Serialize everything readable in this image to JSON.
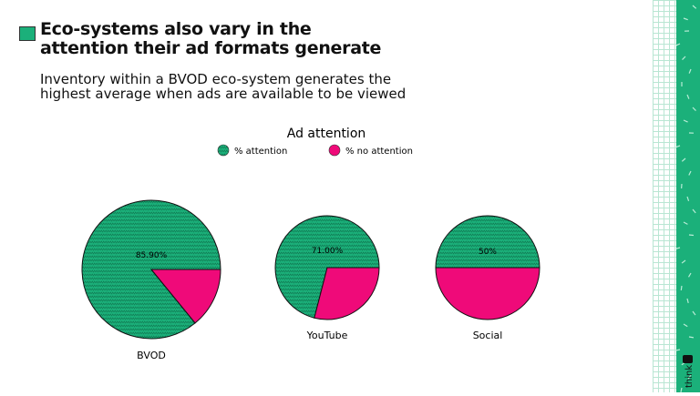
{
  "slide": {
    "title": "Eco-systems also vary in the attention their ad formats generate",
    "title_lines": [
      "Eco-systems also vary in the",
      "attention their ad formats generate"
    ],
    "subtitle_lines": [
      "Inventory within a BVOD eco-system generates the",
      "highest average when ads are available to be viewed"
    ],
    "logo_text": "think"
  },
  "colors": {
    "attention": "#1bb07a",
    "no_attention": "#ef0a79",
    "accent": "#1bb07a"
  },
  "chart_data": {
    "type": "pie",
    "title": "Ad attention",
    "legend": {
      "placement": "top",
      "entries": [
        "% attention",
        "% no attention"
      ]
    },
    "series_names": [
      "% attention",
      "% no attention"
    ],
    "pies": [
      {
        "category": "BVOD",
        "values": [
          85.9,
          14.1
        ],
        "label": "85.90%"
      },
      {
        "category": "YouTube",
        "values": [
          71.0,
          29.0
        ],
        "label": "71.00%"
      },
      {
        "category": "Social",
        "values": [
          50,
          50
        ],
        "label": "50%"
      }
    ]
  }
}
